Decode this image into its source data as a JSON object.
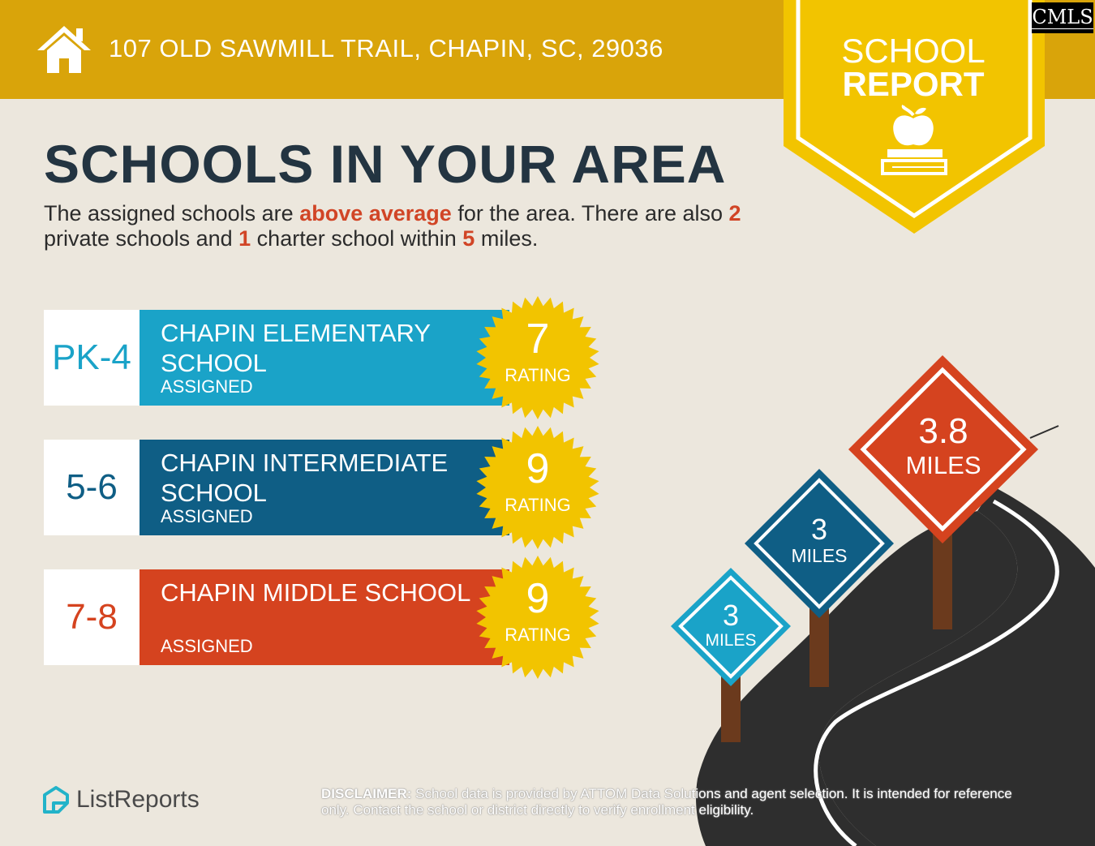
{
  "header": {
    "icon": "house-icon",
    "address": "107 OLD SAWMILL TRAIL, CHAPIN, SC, 29036"
  },
  "badge": {
    "line1": "SCHOOL",
    "line2": "REPORT",
    "icon": "apple-books-icon"
  },
  "mls_logo": "CMLS",
  "title": "SCHOOLS IN YOUR AREA",
  "summary": {
    "p1": "The assigned schools are ",
    "highlight": "above average",
    "p2": " for the area. There are also ",
    "private_count": "2",
    "p3": " private schools and ",
    "charter_count": "1",
    "p4": " charter school within ",
    "miles": "5",
    "p5": " miles."
  },
  "schools": [
    {
      "grades": "PK-4",
      "name": "CHAPIN ELEMENTARY SCHOOL",
      "status": "ASSIGNED",
      "rating": "7",
      "rating_label": "RATING",
      "color": "#1aa3c8"
    },
    {
      "grades": "5-6",
      "name": "CHAPIN INTERMEDIATE SCHOOL",
      "status": "ASSIGNED",
      "rating": "9",
      "rating_label": "RATING",
      "color": "#0f5e85"
    },
    {
      "grades": "7-8",
      "name": "CHAPIN MIDDLE SCHOOL",
      "status": "ASSIGNED",
      "rating": "9",
      "rating_label": "RATING",
      "color": "#d5431f"
    }
  ],
  "signs": [
    {
      "value": "3",
      "unit": "MILES",
      "color": "#1aa3c8"
    },
    {
      "value": "3",
      "unit": "MILES",
      "color": "#0f5e85"
    },
    {
      "value": "3.8",
      "unit": "MILES",
      "color": "#d5431f"
    }
  ],
  "colors": {
    "gold": "#d9a40a",
    "yellow": "#f2c400",
    "navy": "#233441",
    "highlight": "#d14526"
  },
  "footer": {
    "logo_icon": "listreports-logo-icon",
    "logo_text": "ListReports",
    "disclaimer_label": "DISCLAIMER:",
    "disclaimer_text": " School data is provided by ATTOM Data Solutions and agent selection. It is intended for reference only. Contact the school or district directly to verify enrollment eligibility."
  }
}
